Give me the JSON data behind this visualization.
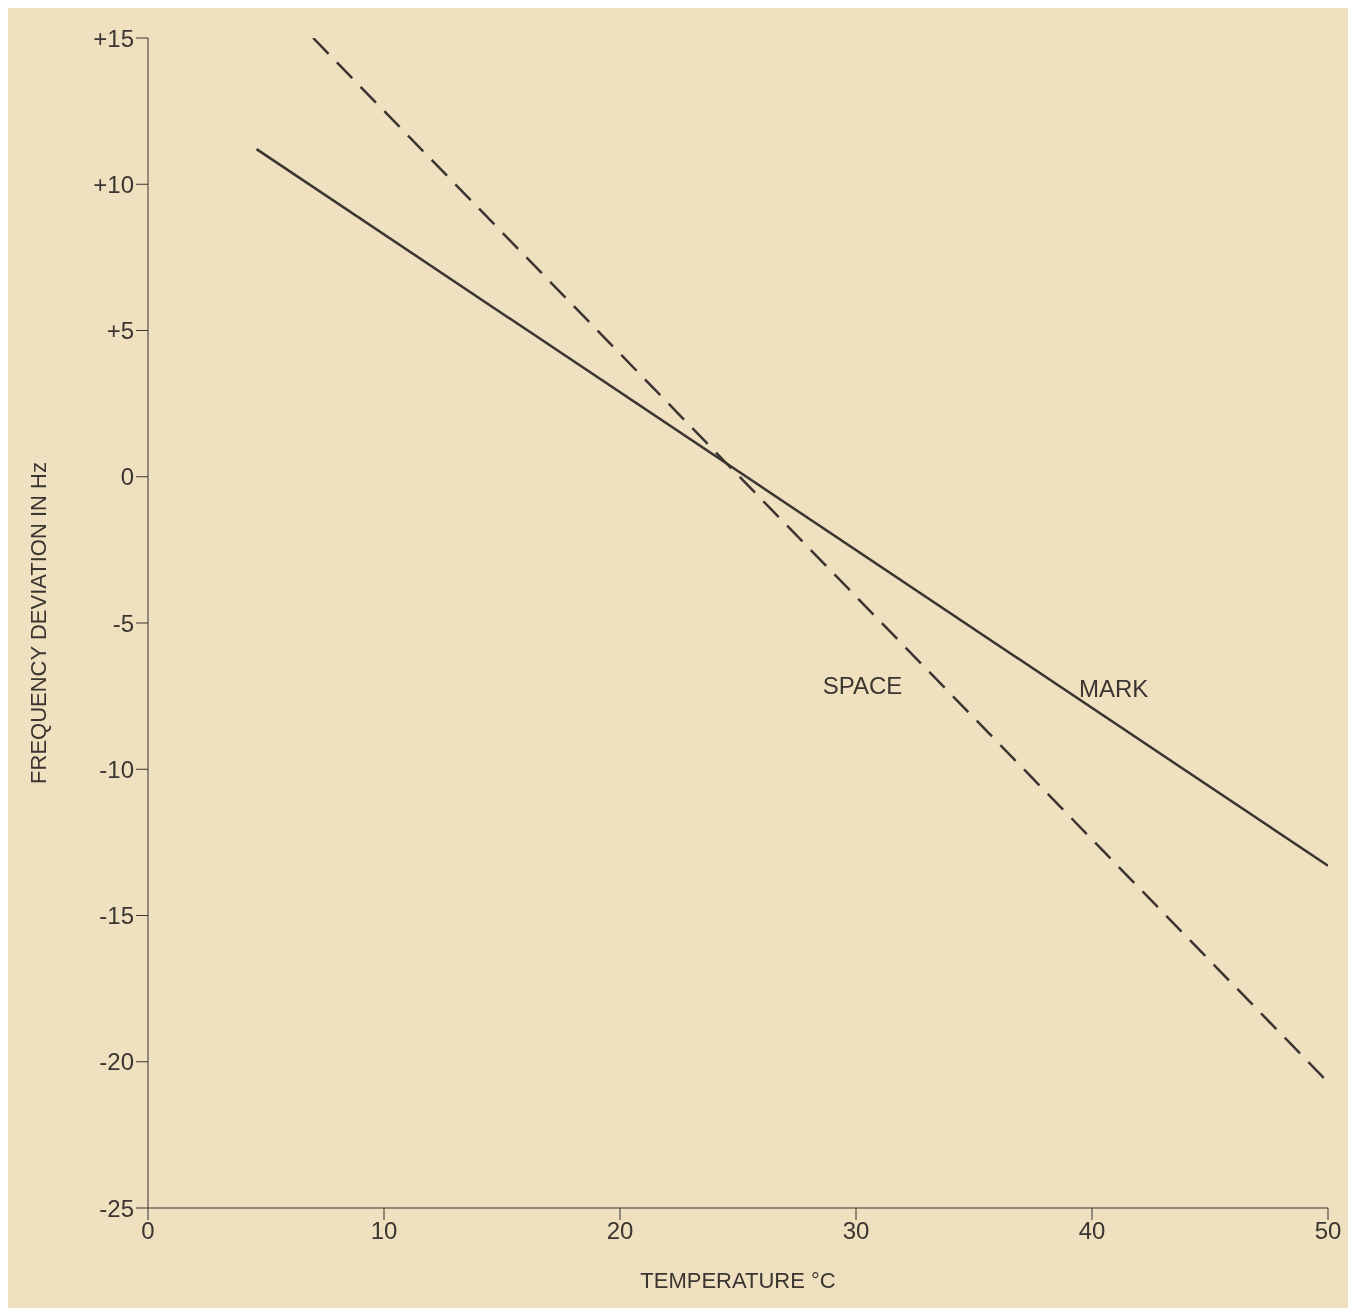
{
  "chart_data": {
    "type": "line",
    "xlabel": "TEMPERATURE °C",
    "ylabel": "FREQUENCY DEVIATION IN Hz",
    "xlim": [
      0,
      50
    ],
    "xticks": [
      0,
      10,
      20,
      30,
      40,
      50
    ],
    "ylim": [
      -25,
      15
    ],
    "yticks": [
      {
        "value": 15,
        "label": "+15"
      },
      {
        "value": 10,
        "label": "+10"
      },
      {
        "value": 5,
        "label": "+5"
      },
      0,
      -5,
      -10,
      -15,
      -20,
      -25
    ],
    "grid": false,
    "marker": "none",
    "series": [
      {
        "name": "MARK",
        "color": "#3a3530",
        "line_style": "solid",
        "x": [
          4.6,
          50
        ],
        "values": [
          11.2,
          -13.3
        ]
      },
      {
        "name": "SPACE",
        "color": "#3a3530",
        "line_style": "dashed",
        "x": [
          7,
          50
        ],
        "values": [
          15,
          -20.7
        ]
      }
    ]
  }
}
